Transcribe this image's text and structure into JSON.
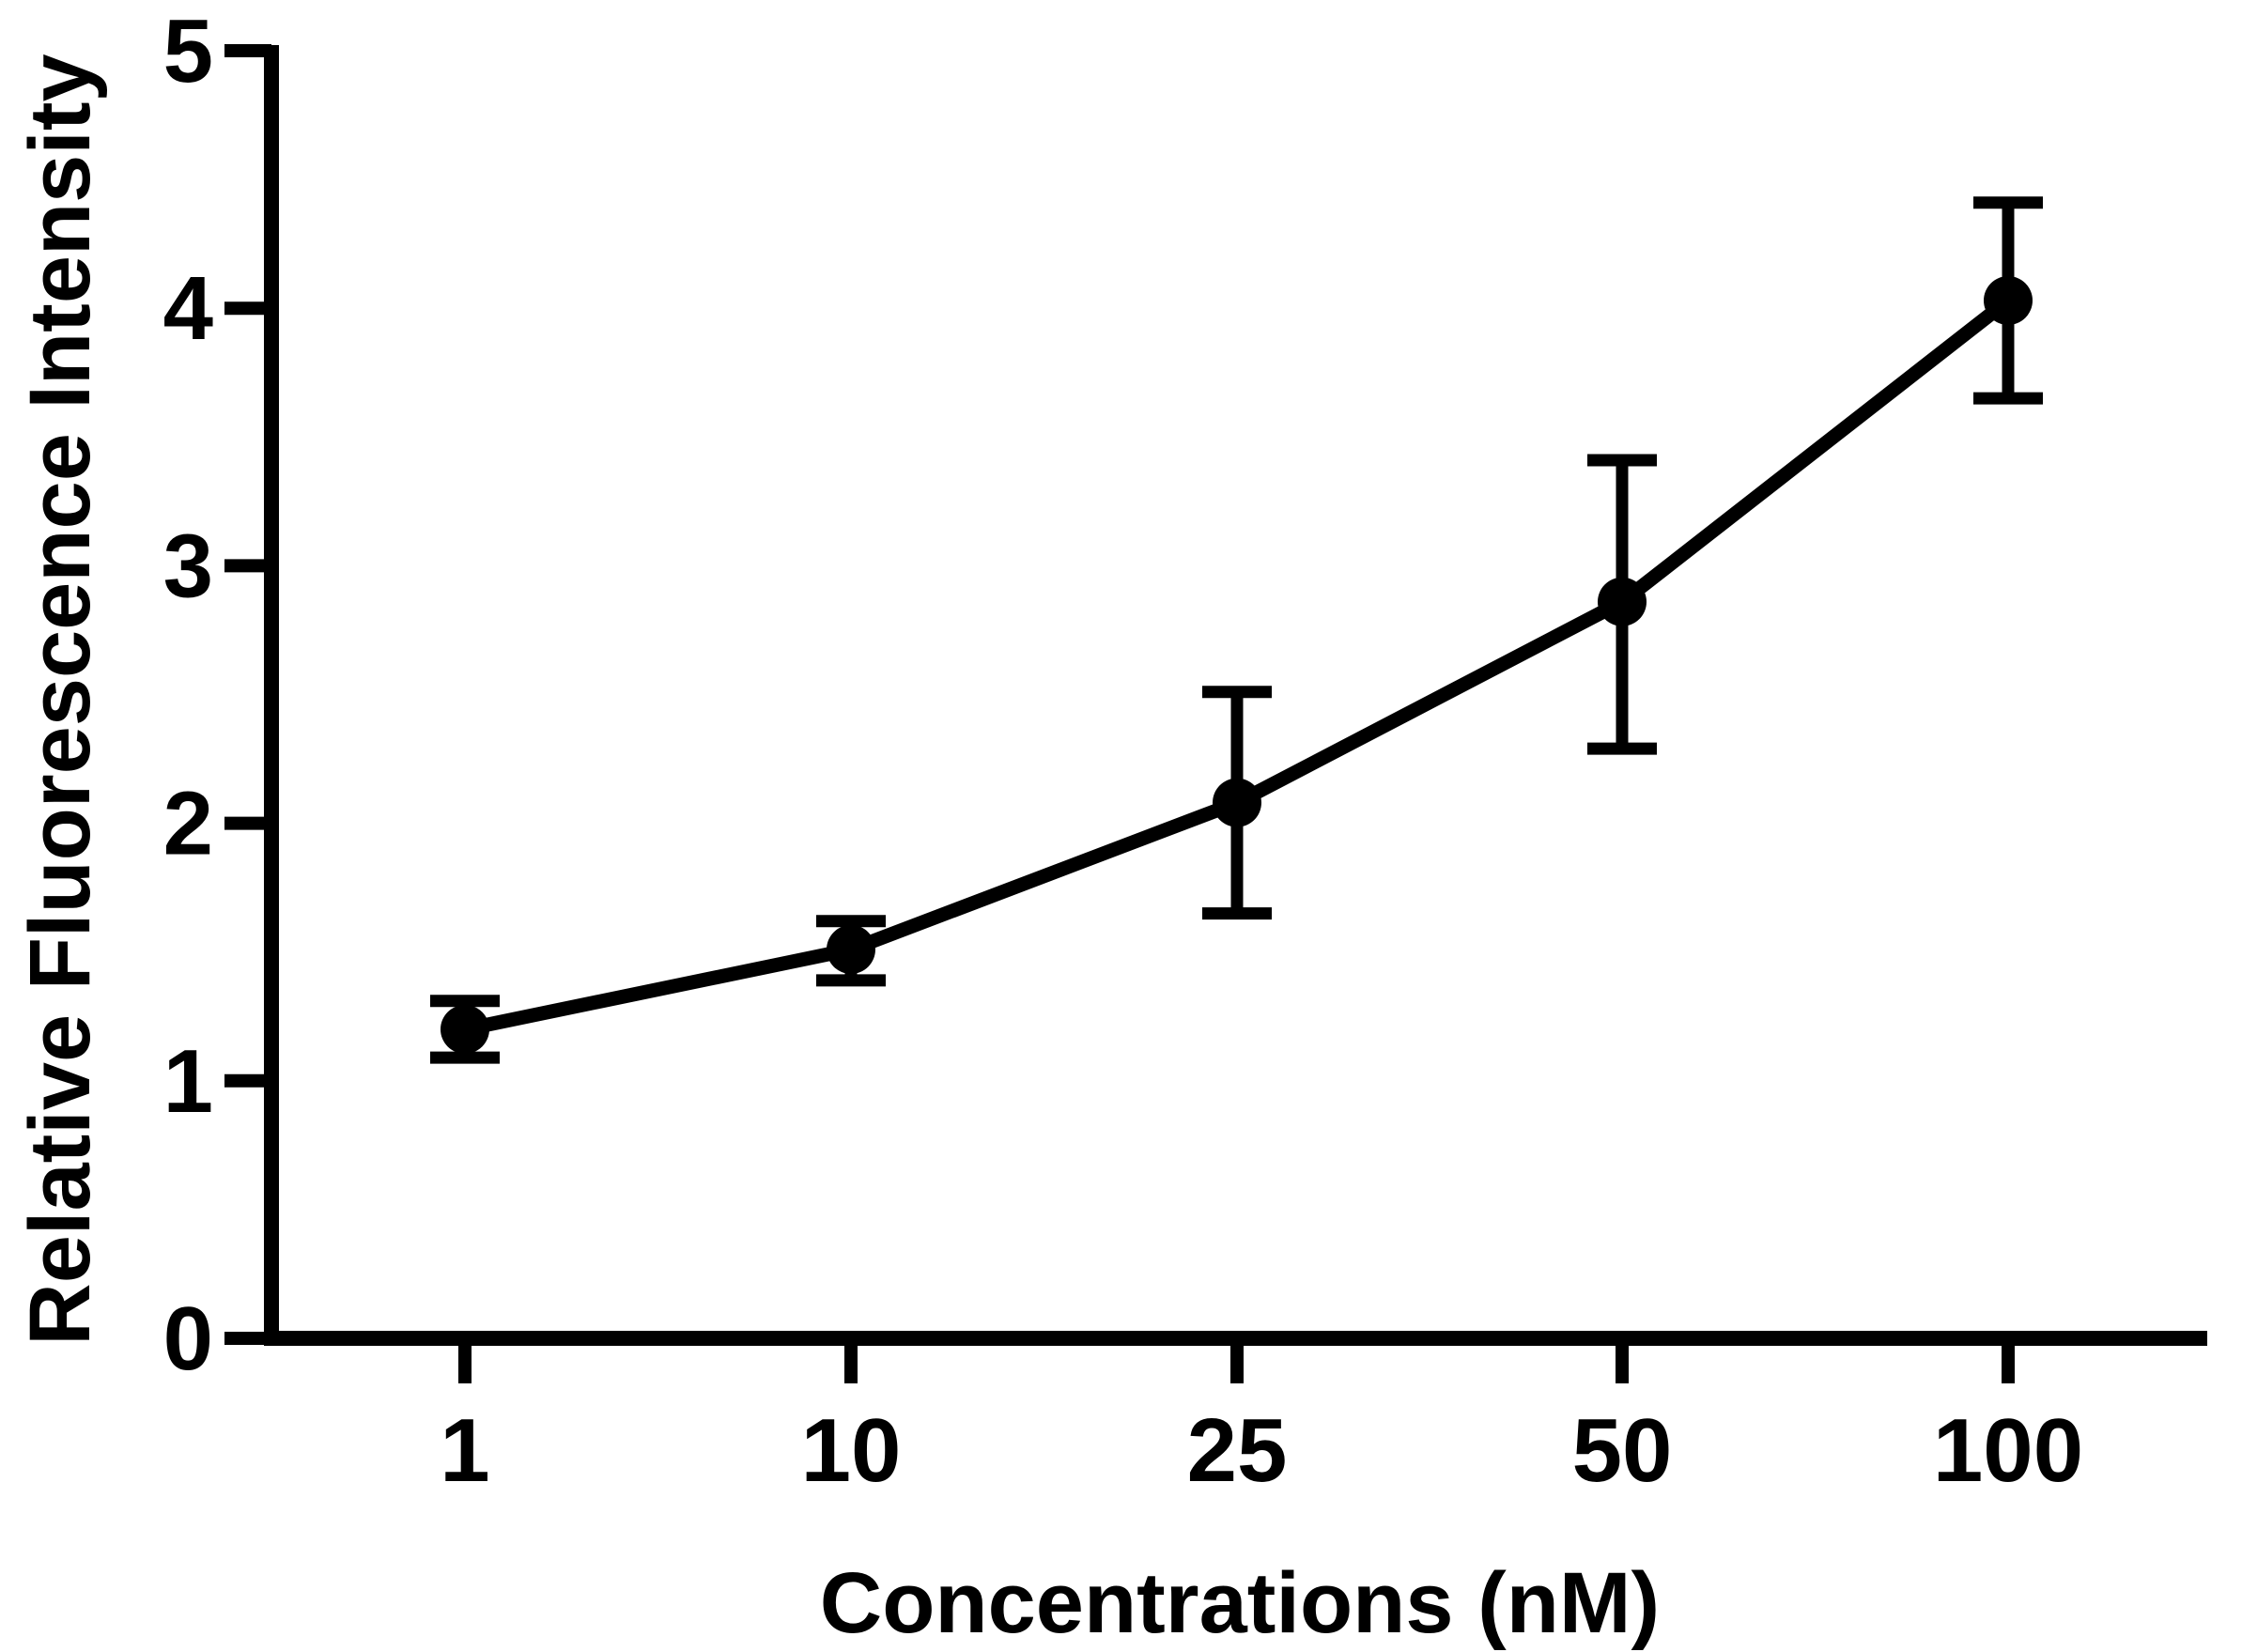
{
  "chart_data": {
    "type": "line",
    "title": "",
    "xlabel": "Concentrations (nM)",
    "ylabel": "Relative Fluorescence Intensity",
    "categories": [
      "1",
      "10",
      "25",
      "50",
      "100"
    ],
    "series": [
      {
        "name": "Relative Fluorescence Intensity",
        "values": [
          1.2,
          1.51,
          2.08,
          2.86,
          4.03
        ],
        "error_low": [
          1.09,
          1.39,
          1.65,
          2.29,
          3.65
        ],
        "error_high": [
          1.31,
          1.62,
          2.51,
          3.41,
          4.41
        ]
      }
    ],
    "ylim": [
      0,
      5
    ],
    "yticks": [
      "0",
      "1",
      "2",
      "3",
      "4",
      "5"
    ],
    "grid": false,
    "legend": "none"
  },
  "colors": {
    "ink": "#000000",
    "background": "#ffffff"
  }
}
